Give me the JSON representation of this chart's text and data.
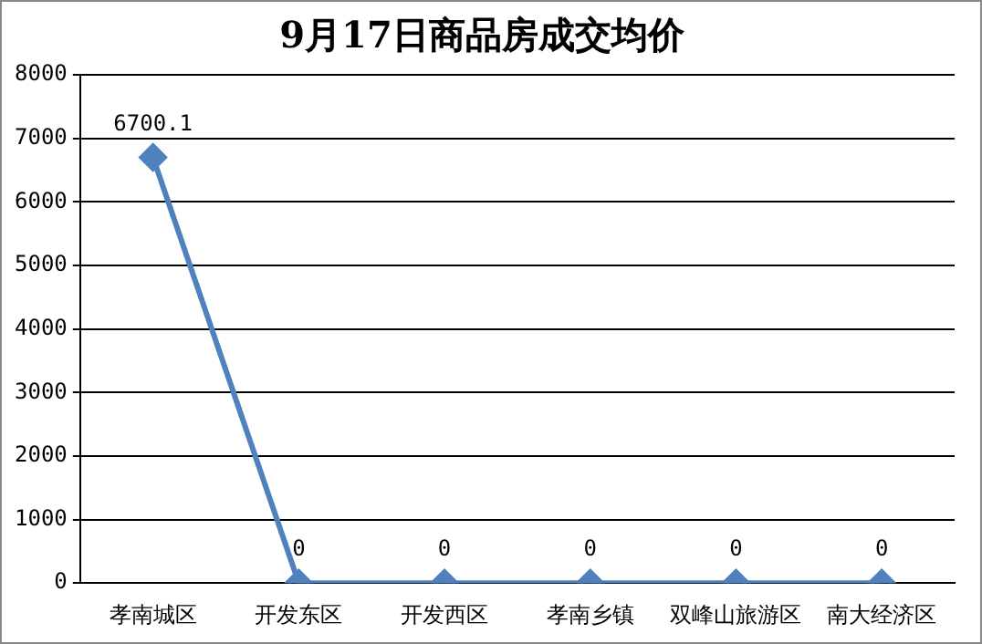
{
  "chart_data": {
    "type": "line",
    "title": "9月17日商品房成交均价",
    "categories": [
      "孝南城区",
      "开发东区",
      "开发西区",
      "孝南乡镇",
      "双峰山旅游区",
      "南大经济区"
    ],
    "series": [
      {
        "color": "#4f81bd",
        "marker": "diamond",
        "line_style": "solid",
        "values": [
          6700.1,
          0,
          0,
          0,
          0,
          0
        ]
      }
    ],
    "ylim": [
      0,
      8000
    ],
    "yticks": [
      0,
      1000,
      2000,
      3000,
      4000,
      5000,
      6000,
      7000,
      8000
    ],
    "grid": "y",
    "legend": false,
    "data_labels": true
  }
}
